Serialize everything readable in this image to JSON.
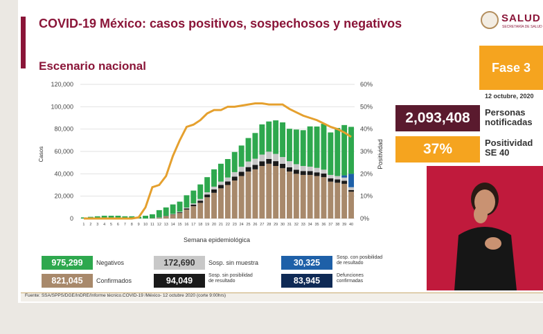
{
  "header": {
    "title": "COVID-19 México: casos positivos, sospechosos y negativos",
    "subtitle": "Escenario nacional"
  },
  "logo": {
    "word": "SALUD",
    "tagline": "SECRETARÍA DE SALUD"
  },
  "phase": {
    "label": "Fase 3",
    "date": "12 octubre, 2020"
  },
  "kpis": [
    {
      "value": "2,093,408",
      "label_line1": "Personas",
      "label_line2": "notificadas",
      "color": "#5a1a2e"
    },
    {
      "value": "37%",
      "label_line1": "Positividad",
      "label_line2": "SE 40",
      "color": "#f5a41f"
    }
  ],
  "legend": [
    {
      "value": "975,299",
      "label": "Negativos",
      "color": "#2ea84e"
    },
    {
      "value": "172,690",
      "label": "Sosp. sin muestra",
      "color": "#c8c8c8"
    },
    {
      "value": "30,325",
      "label_line1": "Sosp. con posibilidad",
      "label_line2": "de resultado",
      "color": "#1e60a8"
    },
    {
      "value": "821,045",
      "label": "Confirmados",
      "color": "#a8896b"
    },
    {
      "value": "94,049",
      "label_line1": "Sosp. sin posibilidad",
      "label_line2": "de resultado",
      "color": "#1a1a1a"
    },
    {
      "value": "83,945",
      "label_line1": "Defunciones",
      "label_line2": "confirmadas",
      "color": "#0f2a55"
    }
  ],
  "source": "Fuente: SSA/SPPS/DGE/InDRE/Informe técnico.COVID-19 /México- 12 octubre 2020 (corte 9:00hrs)",
  "chart_data": {
    "type": "bar",
    "xlabel": "Semana epidemiológica",
    "ylabel": "Casos",
    "y2label": "Positividad",
    "ylim": [
      0,
      120000
    ],
    "y2lim": [
      0,
      60
    ],
    "yticks": [
      "0",
      "20,000",
      "40,000",
      "60,000",
      "80,000",
      "100,000",
      "120,000"
    ],
    "y2ticks": [
      "0%",
      "10%",
      "20%",
      "30%",
      "40%",
      "50%",
      "60%"
    ],
    "categories": [
      "1",
      "2",
      "3",
      "4",
      "5",
      "6",
      "7",
      "8",
      "9",
      "10",
      "11",
      "12",
      "13",
      "14",
      "15",
      "16",
      "17",
      "18",
      "19",
      "20",
      "21",
      "22",
      "23",
      "24",
      "25",
      "26",
      "27",
      "28",
      "29",
      "30",
      "31",
      "32",
      "33",
      "34",
      "35",
      "36",
      "37",
      "38",
      "39",
      "40"
    ],
    "series": [
      {
        "name": "Confirmados",
        "color": "#a8896b",
        "values": [
          0,
          0,
          0,
          0,
          0,
          0,
          0,
          0,
          0,
          0,
          300,
          800,
          2000,
          3500,
          5000,
          8000,
          11000,
          14000,
          19000,
          23000,
          27000,
          30000,
          34000,
          38000,
          42000,
          44000,
          47000,
          49000,
          47000,
          45000,
          42000,
          40000,
          39000,
          39000,
          38000,
          37000,
          33000,
          32000,
          31000,
          24000
        ]
      },
      {
        "name": "Sosp. sin posibilidad de resultado",
        "color": "#1a1a1a",
        "values": [
          0,
          0,
          0,
          0,
          0,
          0,
          0,
          0,
          0,
          0,
          0,
          100,
          200,
          300,
          600,
          1000,
          1500,
          2000,
          2500,
          3000,
          3000,
          3200,
          3500,
          3800,
          4000,
          4000,
          4200,
          4300,
          4300,
          4000,
          3800,
          3600,
          3500,
          3400,
          3300,
          3200,
          3000,
          3000,
          2800,
          1500
        ]
      },
      {
        "name": "Sosp. sin muestra",
        "color": "#c8c8c8",
        "values": [
          0,
          0,
          0,
          0,
          0,
          0,
          0,
          0,
          0,
          0,
          0,
          100,
          200,
          300,
          500,
          800,
          1000,
          1500,
          2000,
          2500,
          3000,
          3500,
          4000,
          4500,
          5000,
          5500,
          6000,
          6500,
          6500,
          6000,
          5500,
          5000,
          4500,
          4000,
          4000,
          3500,
          3000,
          3000,
          2800,
          2500
        ]
      },
      {
        "name": "Sosp. con posibilidad de resultado",
        "color": "#1e60a8",
        "values": [
          0,
          0,
          0,
          0,
          0,
          0,
          0,
          0,
          0,
          0,
          0,
          0,
          0,
          0,
          0,
          0,
          0,
          0,
          0,
          0,
          0,
          0,
          0,
          0,
          0,
          0,
          0,
          0,
          0,
          0,
          0,
          0,
          0,
          0,
          0,
          0,
          0,
          0,
          2000,
          12000
        ]
      },
      {
        "name": "Negativos",
        "color": "#2ea84e",
        "values": [
          1000,
          1500,
          2000,
          2500,
          2500,
          2500,
          2000,
          2000,
          1500,
          2500,
          3500,
          6500,
          7500,
          8500,
          9000,
          11000,
          11500,
          13000,
          13500,
          15500,
          16000,
          16500,
          18000,
          19000,
          21000,
          23000,
          27000,
          27000,
          30000,
          31000,
          29000,
          31000,
          32000,
          36000,
          37000,
          41000,
          38000,
          43000,
          45000,
          42000
        ]
      }
    ],
    "line": {
      "name": "Positividad",
      "color": "#e5a02e",
      "values": [
        0,
        0,
        0,
        0,
        0,
        0,
        0,
        0,
        0.5,
        5,
        14,
        15,
        19,
        28,
        35,
        41,
        42,
        44,
        47,
        48.5,
        48.5,
        50,
        50,
        50.5,
        51,
        51.5,
        51.5,
        51,
        51,
        51,
        49,
        47.5,
        46,
        45,
        44,
        42.5,
        41,
        40,
        38.5,
        36.5
      ]
    }
  }
}
